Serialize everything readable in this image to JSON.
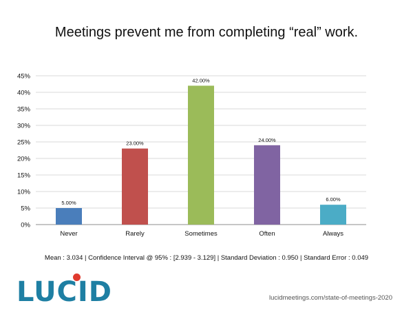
{
  "slide": {
    "title": "Meetings prevent me from completing “real” work.",
    "stats": "Mean : 3.034  |  Confidence Interval @ 95% : [2.939 - 3.129]  |  Standard Deviation : 0.950  |  Standard Error : 0.049",
    "source": "lucidmeetings.com/state-of-meetings-2020",
    "logo_text": "LUCID",
    "logo_color": "#1e7fa3",
    "logo_dot_color": "#e03a2e"
  },
  "chart_data": {
    "type": "bar",
    "title": "Meetings prevent me from completing “real” work.",
    "categories": [
      "Never",
      "Rarely",
      "Sometimes",
      "Often",
      "Always"
    ],
    "values": [
      5,
      23,
      42,
      24,
      6
    ],
    "data_labels": [
      "5.00%",
      "23.00%",
      "42.00%",
      "24.00%",
      "6.00%"
    ],
    "colors": [
      "#4a7ebb",
      "#c0504d",
      "#9bbb59",
      "#8064a2",
      "#4bacc6"
    ],
    "yticks": [
      0,
      5,
      10,
      15,
      20,
      25,
      30,
      35,
      40,
      45
    ],
    "ytick_labels": [
      "0%",
      "5%",
      "10%",
      "15%",
      "20%",
      "25%",
      "30%",
      "35%",
      "40%",
      "45%"
    ],
    "ylim": [
      0,
      45
    ],
    "xlabel": "",
    "ylabel": "",
    "grid": true,
    "legend": "none"
  }
}
